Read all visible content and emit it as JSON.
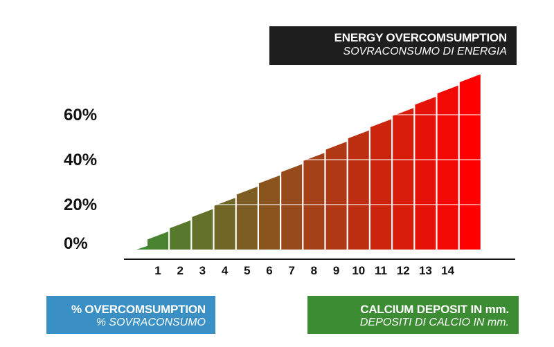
{
  "title": {
    "line1": "ENERGY OVERCOMSUMPTION",
    "line2": "SOVRACONSUMO DI ENERGIA"
  },
  "legend": {
    "left": {
      "line1": "% OVERCOMSUMPTION",
      "line2": "% SOVRACONSUMO",
      "color": "#3a8fc4"
    },
    "right": {
      "line1": "CALCIUM DEPOSIT IN mm.",
      "line2": "DEPOSITI DI CALCIO IN mm.",
      "color": "#3c8c34"
    }
  },
  "chart_data": {
    "type": "bar",
    "x": [
      0.5,
      1,
      2,
      3,
      4,
      5,
      6,
      7,
      8,
      9,
      10,
      11,
      12,
      13,
      14,
      15
    ],
    "x_tick_labels": [
      "1",
      "2",
      "3",
      "4",
      "5",
      "6",
      "7",
      "8",
      "9",
      "10",
      "11",
      "12",
      "13",
      "14"
    ],
    "values": [
      3,
      8,
      13,
      18,
      23,
      28,
      33,
      38,
      43,
      48,
      53,
      58,
      63,
      68,
      73,
      78
    ],
    "y_tick_values": [
      0,
      20,
      40,
      60
    ],
    "y_tick_labels": [
      "0%",
      "20%",
      "40%",
      "60%"
    ],
    "ylim": [
      0,
      80
    ],
    "xlabel": "CALCIUM DEPOSIT IN mm.",
    "ylabel": "% OVERCOMSUMPTION",
    "color_start": "#3c8c34",
    "color_end": "#ff0000",
    "grid": true
  }
}
